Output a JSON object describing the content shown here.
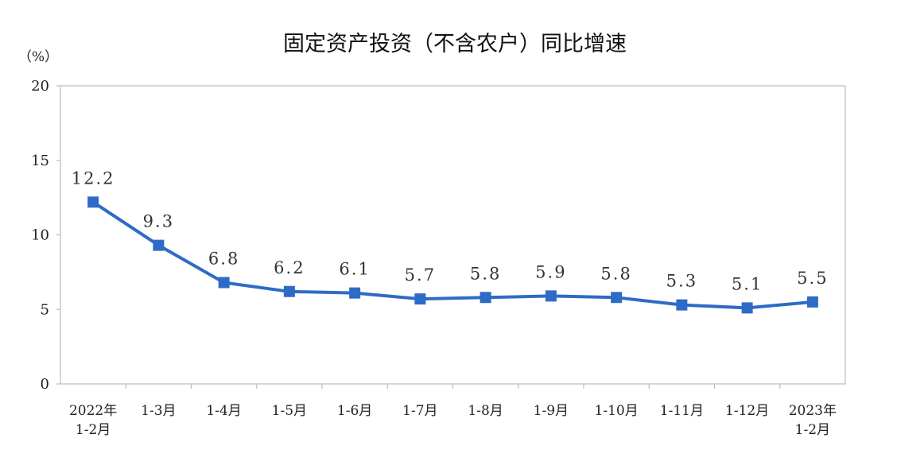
{
  "chart_data": {
    "type": "line",
    "title": "固定资产投资（不含农户）同比增速",
    "ylabel": "（%）",
    "xlabel": "",
    "ylim": [
      0,
      20
    ],
    "yticks": [
      "0",
      "5",
      "10",
      "15",
      "20"
    ],
    "grid": false,
    "legend": "none",
    "categories": [
      [
        "2022年",
        "1-2月"
      ],
      [
        "1-3月"
      ],
      [
        "1-4月"
      ],
      [
        "1-5月"
      ],
      [
        "1-6月"
      ],
      [
        "1-7月"
      ],
      [
        "1-8月"
      ],
      [
        "1-9月"
      ],
      [
        "1-10月"
      ],
      [
        "1-11月"
      ],
      [
        "1-12月"
      ],
      [
        "2023年",
        "1-2月"
      ]
    ],
    "series": [
      {
        "values": [
          12.2,
          9.3,
          6.8,
          6.2,
          6.1,
          5.7,
          5.8,
          5.9,
          5.8,
          5.3,
          5.1,
          5.5
        ],
        "labels": [
          "12.2",
          "9.3",
          "6.8",
          "6.2",
          "6.1",
          "5.7",
          "5.8",
          "5.9",
          "5.8",
          "5.3",
          "5.1",
          "5.5"
        ],
        "color": "#2e6bc6"
      }
    ],
    "axis_color": "#bbbbbb"
  }
}
